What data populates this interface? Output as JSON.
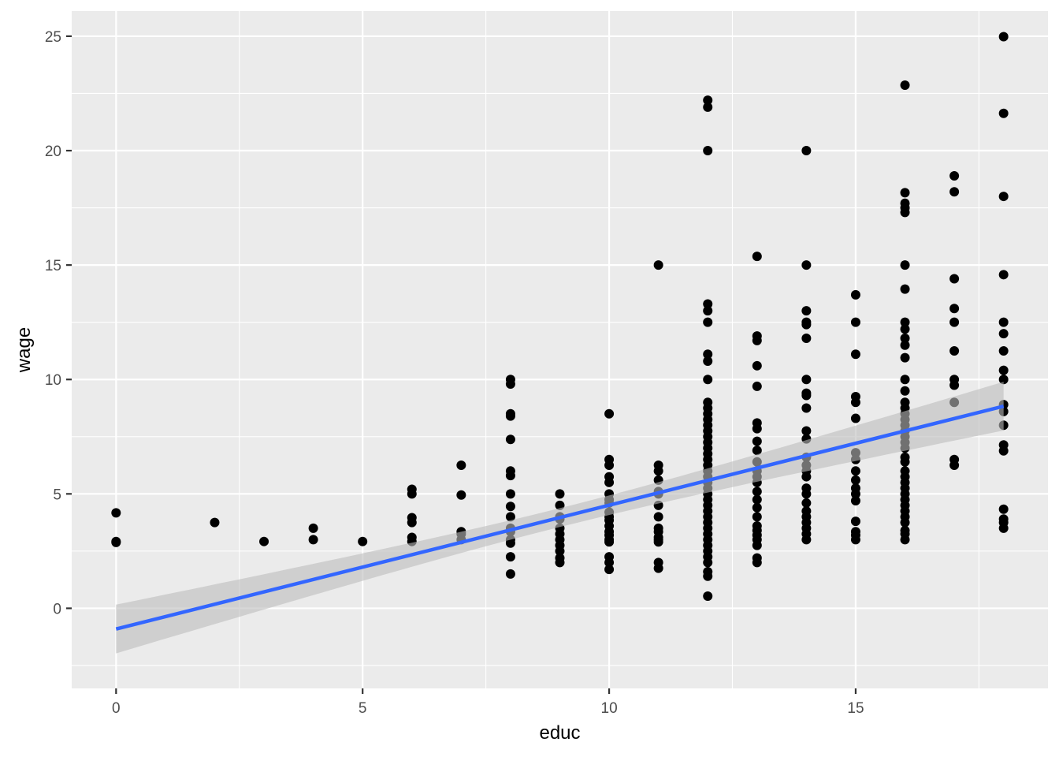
{
  "chart_data": {
    "type": "scatter",
    "xlabel": "educ",
    "ylabel": "wage",
    "xlim": [
      -0.9,
      18.9
    ],
    "ylim": [
      -3.5,
      26.1
    ],
    "x_ticks": [
      0,
      5,
      10,
      15
    ],
    "y_ticks": [
      0,
      5,
      10,
      15,
      20,
      25
    ],
    "grid": true,
    "colors": {
      "panel": "#ebebeb",
      "grid_major": "#ffffff",
      "points": "#000000",
      "fit_line": "#3366ff",
      "confidence_band": "#bdbdbd"
    },
    "points": [
      [
        0,
        4.17
      ],
      [
        0,
        2.92
      ],
      [
        0,
        2.88
      ],
      [
        2,
        3.75
      ],
      [
        3,
        2.92
      ],
      [
        4,
        3.5
      ],
      [
        4,
        3.0
      ],
      [
        5,
        2.92
      ],
      [
        6,
        5.2
      ],
      [
        6,
        5.0
      ],
      [
        6,
        3.96
      ],
      [
        6,
        3.75
      ],
      [
        6,
        3.1
      ],
      [
        6,
        2.92
      ],
      [
        7,
        6.25
      ],
      [
        7,
        4.95
      ],
      [
        7,
        3.35
      ],
      [
        7,
        3.25
      ],
      [
        7,
        3.0
      ],
      [
        8,
        10.0
      ],
      [
        8,
        9.8
      ],
      [
        8,
        8.5
      ],
      [
        8,
        8.4
      ],
      [
        8,
        7.38
      ],
      [
        8,
        6.0
      ],
      [
        8,
        5.8
      ],
      [
        8,
        5.0
      ],
      [
        8,
        4.45
      ],
      [
        8,
        4.0
      ],
      [
        8,
        3.5
      ],
      [
        8,
        3.35
      ],
      [
        8,
        3.0
      ],
      [
        8,
        2.85
      ],
      [
        8,
        2.25
      ],
      [
        8,
        1.5
      ],
      [
        9,
        5.0
      ],
      [
        9,
        4.5
      ],
      [
        9,
        4.0
      ],
      [
        9,
        3.9
      ],
      [
        9,
        3.5
      ],
      [
        9,
        3.25
      ],
      [
        9,
        3.0
      ],
      [
        9,
        2.75
      ],
      [
        9,
        2.5
      ],
      [
        9,
        2.2
      ],
      [
        9,
        2.0
      ],
      [
        10,
        8.5
      ],
      [
        10,
        6.5
      ],
      [
        10,
        6.25
      ],
      [
        10,
        5.75
      ],
      [
        10,
        5.5
      ],
      [
        10,
        5.0
      ],
      [
        10,
        4.75
      ],
      [
        10,
        4.6
      ],
      [
        10,
        4.2
      ],
      [
        10,
        4.0
      ],
      [
        10,
        3.85
      ],
      [
        10,
        3.6
      ],
      [
        10,
        3.35
      ],
      [
        10,
        3.2
      ],
      [
        10,
        3.0
      ],
      [
        10,
        2.9
      ],
      [
        10,
        2.25
      ],
      [
        10,
        2.0
      ],
      [
        10,
        1.7
      ],
      [
        11,
        15.0
      ],
      [
        11,
        6.25
      ],
      [
        11,
        6.0
      ],
      [
        11,
        5.6
      ],
      [
        11,
        5.1
      ],
      [
        11,
        5.0
      ],
      [
        11,
        4.5
      ],
      [
        11,
        4.0
      ],
      [
        11,
        3.5
      ],
      [
        11,
        3.35
      ],
      [
        11,
        3.1
      ],
      [
        11,
        3.0
      ],
      [
        11,
        2.9
      ],
      [
        11,
        2.0
      ],
      [
        11,
        1.75
      ],
      [
        12,
        22.2
      ],
      [
        12,
        21.9
      ],
      [
        12,
        20.0
      ],
      [
        12,
        13.3
      ],
      [
        12,
        13.0
      ],
      [
        12,
        12.5
      ],
      [
        12,
        11.1
      ],
      [
        12,
        10.8
      ],
      [
        12,
        10.0
      ],
      [
        12,
        9.0
      ],
      [
        12,
        8.75
      ],
      [
        12,
        8.5
      ],
      [
        12,
        8.25
      ],
      [
        12,
        8.0
      ],
      [
        12,
        7.75
      ],
      [
        12,
        7.5
      ],
      [
        12,
        7.25
      ],
      [
        12,
        7.0
      ],
      [
        12,
        6.75
      ],
      [
        12,
        6.5
      ],
      [
        12,
        6.25
      ],
      [
        12,
        6.0
      ],
      [
        12,
        5.75
      ],
      [
        12,
        5.5
      ],
      [
        12,
        5.25
      ],
      [
        12,
        5.0
      ],
      [
        12,
        4.75
      ],
      [
        12,
        4.5
      ],
      [
        12,
        4.25
      ],
      [
        12,
        4.0
      ],
      [
        12,
        3.75
      ],
      [
        12,
        3.5
      ],
      [
        12,
        3.25
      ],
      [
        12,
        3.0
      ],
      [
        12,
        2.75
      ],
      [
        12,
        2.5
      ],
      [
        12,
        2.25
      ],
      [
        12,
        2.0
      ],
      [
        12,
        1.6
      ],
      [
        12,
        1.4
      ],
      [
        12,
        0.53
      ],
      [
        13,
        15.38
      ],
      [
        13,
        11.9
      ],
      [
        13,
        11.7
      ],
      [
        13,
        10.6
      ],
      [
        13,
        9.7
      ],
      [
        13,
        8.1
      ],
      [
        13,
        7.85
      ],
      [
        13,
        7.3
      ],
      [
        13,
        6.9
      ],
      [
        13,
        6.4
      ],
      [
        13,
        6.0
      ],
      [
        13,
        5.75
      ],
      [
        13,
        5.5
      ],
      [
        13,
        5.1
      ],
      [
        13,
        4.75
      ],
      [
        13,
        4.4
      ],
      [
        13,
        4.0
      ],
      [
        13,
        3.6
      ],
      [
        13,
        3.4
      ],
      [
        13,
        3.2
      ],
      [
        13,
        3.0
      ],
      [
        13,
        2.75
      ],
      [
        13,
        2.2
      ],
      [
        13,
        2.0
      ],
      [
        14,
        20.0
      ],
      [
        14,
        15.0
      ],
      [
        14,
        13.0
      ],
      [
        14,
        12.5
      ],
      [
        14,
        12.4
      ],
      [
        14,
        11.8
      ],
      [
        14,
        10.0
      ],
      [
        14,
        9.4
      ],
      [
        14,
        9.3
      ],
      [
        14,
        8.75
      ],
      [
        14,
        7.75
      ],
      [
        14,
        7.4
      ],
      [
        14,
        6.6
      ],
      [
        14,
        6.25
      ],
      [
        14,
        6.0
      ],
      [
        14,
        5.75
      ],
      [
        14,
        5.25
      ],
      [
        14,
        5.0
      ],
      [
        14,
        4.6
      ],
      [
        14,
        4.25
      ],
      [
        14,
        4.0
      ],
      [
        14,
        3.75
      ],
      [
        14,
        3.5
      ],
      [
        14,
        3.25
      ],
      [
        14,
        3.0
      ],
      [
        15,
        13.7
      ],
      [
        15,
        12.5
      ],
      [
        15,
        11.1
      ],
      [
        15,
        9.25
      ],
      [
        15,
        9.0
      ],
      [
        15,
        8.3
      ],
      [
        15,
        6.8
      ],
      [
        15,
        6.5
      ],
      [
        15,
        6.0
      ],
      [
        15,
        5.6
      ],
      [
        15,
        5.25
      ],
      [
        15,
        5.0
      ],
      [
        15,
        4.7
      ],
      [
        15,
        3.8
      ],
      [
        15,
        3.35
      ],
      [
        15,
        3.2
      ],
      [
        15,
        3.0
      ],
      [
        16,
        22.86
      ],
      [
        16,
        18.16
      ],
      [
        16,
        17.7
      ],
      [
        16,
        17.5
      ],
      [
        16,
        17.3
      ],
      [
        16,
        15.0
      ],
      [
        16,
        13.95
      ],
      [
        16,
        12.5
      ],
      [
        16,
        12.2
      ],
      [
        16,
        11.8
      ],
      [
        16,
        11.5
      ],
      [
        16,
        10.95
      ],
      [
        16,
        10.0
      ],
      [
        16,
        9.5
      ],
      [
        16,
        9.0
      ],
      [
        16,
        8.75
      ],
      [
        16,
        8.5
      ],
      [
        16,
        8.25
      ],
      [
        16,
        8.0
      ],
      [
        16,
        7.75
      ],
      [
        16,
        7.5
      ],
      [
        16,
        7.25
      ],
      [
        16,
        7.0
      ],
      [
        16,
        6.6
      ],
      [
        16,
        6.4
      ],
      [
        16,
        6.0
      ],
      [
        16,
        5.75
      ],
      [
        16,
        5.5
      ],
      [
        16,
        5.25
      ],
      [
        16,
        5.0
      ],
      [
        16,
        4.75
      ],
      [
        16,
        4.5
      ],
      [
        16,
        4.25
      ],
      [
        16,
        4.0
      ],
      [
        16,
        3.75
      ],
      [
        16,
        3.4
      ],
      [
        16,
        3.25
      ],
      [
        16,
        3.0
      ],
      [
        17,
        18.9
      ],
      [
        17,
        18.2
      ],
      [
        17,
        14.4
      ],
      [
        17,
        13.1
      ],
      [
        17,
        12.5
      ],
      [
        17,
        11.25
      ],
      [
        17,
        10.0
      ],
      [
        17,
        9.75
      ],
      [
        17,
        9.0
      ],
      [
        17,
        6.5
      ],
      [
        17,
        6.25
      ],
      [
        18,
        24.98
      ],
      [
        18,
        21.63
      ],
      [
        18,
        18.0
      ],
      [
        18,
        14.58
      ],
      [
        18,
        12.5
      ],
      [
        18,
        12.0
      ],
      [
        18,
        11.25
      ],
      [
        18,
        10.4
      ],
      [
        18,
        10.0
      ],
      [
        18,
        8.9
      ],
      [
        18,
        8.6
      ],
      [
        18,
        8.0
      ],
      [
        18,
        7.14
      ],
      [
        18,
        6.88
      ],
      [
        18,
        4.33
      ],
      [
        18,
        3.9
      ],
      [
        18,
        3.75
      ],
      [
        18,
        3.5
      ]
    ],
    "fit": {
      "method": "lm",
      "intercept": -0.905,
      "slope": 0.541,
      "band_at_xmin": [
        -2.28,
        0.47
      ],
      "band_at_xmax": [
        8.22,
        9.44
      ]
    }
  }
}
